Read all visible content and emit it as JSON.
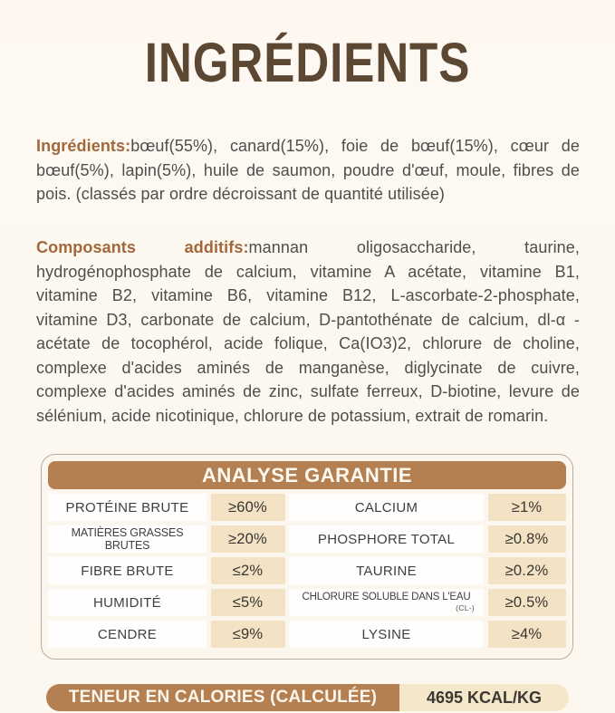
{
  "page": {
    "title": "INGRÉDIENTS"
  },
  "ingredients": {
    "label": "Ingrédients:",
    "text": "bœuf(55%), canard(15%), foie de bœuf(15%), cœur de bœuf(5%), lapin(5%), huile de saumon, poudre d'œuf, moule, fibres de pois. (classés par ordre décroissant de quantité utilisée)"
  },
  "additives": {
    "label": "Composants additifs:",
    "text": "mannan oligosaccharide, taurine, hydrogénophosphate de calcium, vitamine A acétate, vitamine B1, vitamine B2, vitamine B6, vitamine B12, L-ascorbate-2-phosphate, vitamine D3, carbonate de calcium, D-pantothénate de calcium, dl-α -acétate de tocophérol, acide folique, Ca(IO3)2, chlorure de choline, complexe d'acides aminés de manganèse, diglycinate de cuivre, complexe d'acides aminés de zinc, sulfate ferreux, D-biotine, levure de sélénium, acide nicotinique, chlorure de potassium, extrait de romarin."
  },
  "analysis": {
    "title": "ANALYSE GARANTIE",
    "rows": [
      {
        "left_label": "PROTÉINE BRUTE",
        "left_value": "≥60%",
        "right_label": "CALCIUM",
        "right_value": "≥1%"
      },
      {
        "left_label": "MATIÈRES GRASSES BRUTES",
        "left_value": "≥20%",
        "right_label": "PHOSPHORE TOTAL",
        "right_value": "≥0.8%"
      },
      {
        "left_label": "FIBRE BRUTE",
        "left_value": "≤2%",
        "right_label": "TAURINE",
        "right_value": "≥0.2%"
      },
      {
        "left_label": "HUMIDITÉ",
        "left_value": "≤5%",
        "right_label": "CHLORURE SOLUBLE DANS L'EAU",
        "right_label_sub": "(CL-)",
        "right_value": "≥0.5%"
      },
      {
        "left_label": "CENDRE",
        "left_value": "≤9%",
        "right_label": "LYSINE",
        "right_value": "≥4%"
      }
    ]
  },
  "calories": {
    "label": "TENEUR EN CALORIES (CALCULÉE)",
    "value": "4695 KCAL/KG"
  },
  "colors": {
    "accent_brown": "#b58051",
    "title_brown": "#5c4732",
    "label_brown": "#a2683c",
    "value_cell_cream": "#f3e3c4",
    "background_cream": "#fdf8f1"
  }
}
